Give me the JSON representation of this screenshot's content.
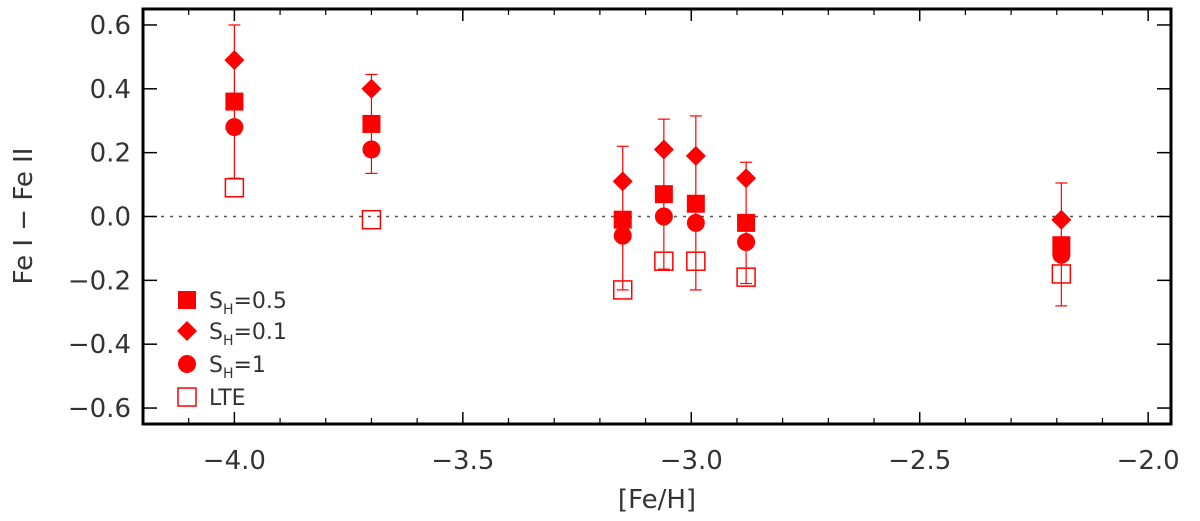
{
  "chart_data": {
    "type": "scatter",
    "xlabel": "[Fe/H]",
    "ylabel": "Fe I − Fe II",
    "xlim": [
      -4.2,
      -1.95
    ],
    "ylim": [
      -0.65,
      0.65
    ],
    "x_ticks": [
      -4.0,
      -3.5,
      -3.0,
      -2.5,
      -2.0
    ],
    "x_tick_labels": [
      "−4.0",
      "−3.5",
      "−3.0",
      "−2.5",
      "−2.0"
    ],
    "y_ticks": [
      0.6,
      0.4,
      0.2,
      0.0,
      -0.2,
      -0.4,
      -0.6
    ],
    "y_tick_labels": [
      "0.6",
      "0.4",
      "0.2",
      "0.0",
      "−0.2",
      "−0.4",
      "−0.6"
    ],
    "reference_line": 0.0,
    "legend_position": "bottom-left",
    "color": "#ff0000",
    "x": [
      -4.0,
      -3.7,
      -3.15,
      -3.06,
      -2.99,
      -2.88,
      -2.19
    ],
    "series": [
      {
        "name": "S_H=0.5",
        "legend_main": "S",
        "legend_sub": "H",
        "legend_tail": "=0.5",
        "marker": "filled-square",
        "values": [
          0.36,
          0.29,
          -0.01,
          0.07,
          0.04,
          -0.02,
          -0.09
        ]
      },
      {
        "name": "S_H=0.1",
        "legend_main": "S",
        "legend_sub": "H",
        "legend_tail": "=0.1",
        "marker": "filled-diamond",
        "values": [
          0.49,
          0.4,
          0.11,
          0.21,
          0.19,
          0.12,
          -0.01
        ],
        "error_bars": [
          [
            0.12,
            0.6
          ],
          [
            0.135,
            0.445
          ],
          [
            -0.23,
            0.22
          ],
          [
            -0.165,
            0.305
          ],
          [
            -0.23,
            0.315
          ],
          [
            -0.21,
            0.17
          ],
          [
            -0.28,
            0.105
          ]
        ]
      },
      {
        "name": "S_H=1",
        "legend_main": "S",
        "legend_sub": "H",
        "legend_tail": "=1",
        "marker": "filled-circle",
        "values": [
          0.28,
          0.21,
          -0.06,
          0.0,
          -0.02,
          -0.08,
          -0.12
        ]
      },
      {
        "name": "LTE",
        "legend_main": "LTE",
        "legend_sub": "",
        "legend_tail": "",
        "marker": "open-square",
        "values": [
          0.09,
          -0.01,
          -0.23,
          -0.14,
          -0.14,
          -0.19,
          -0.18
        ]
      }
    ]
  }
}
